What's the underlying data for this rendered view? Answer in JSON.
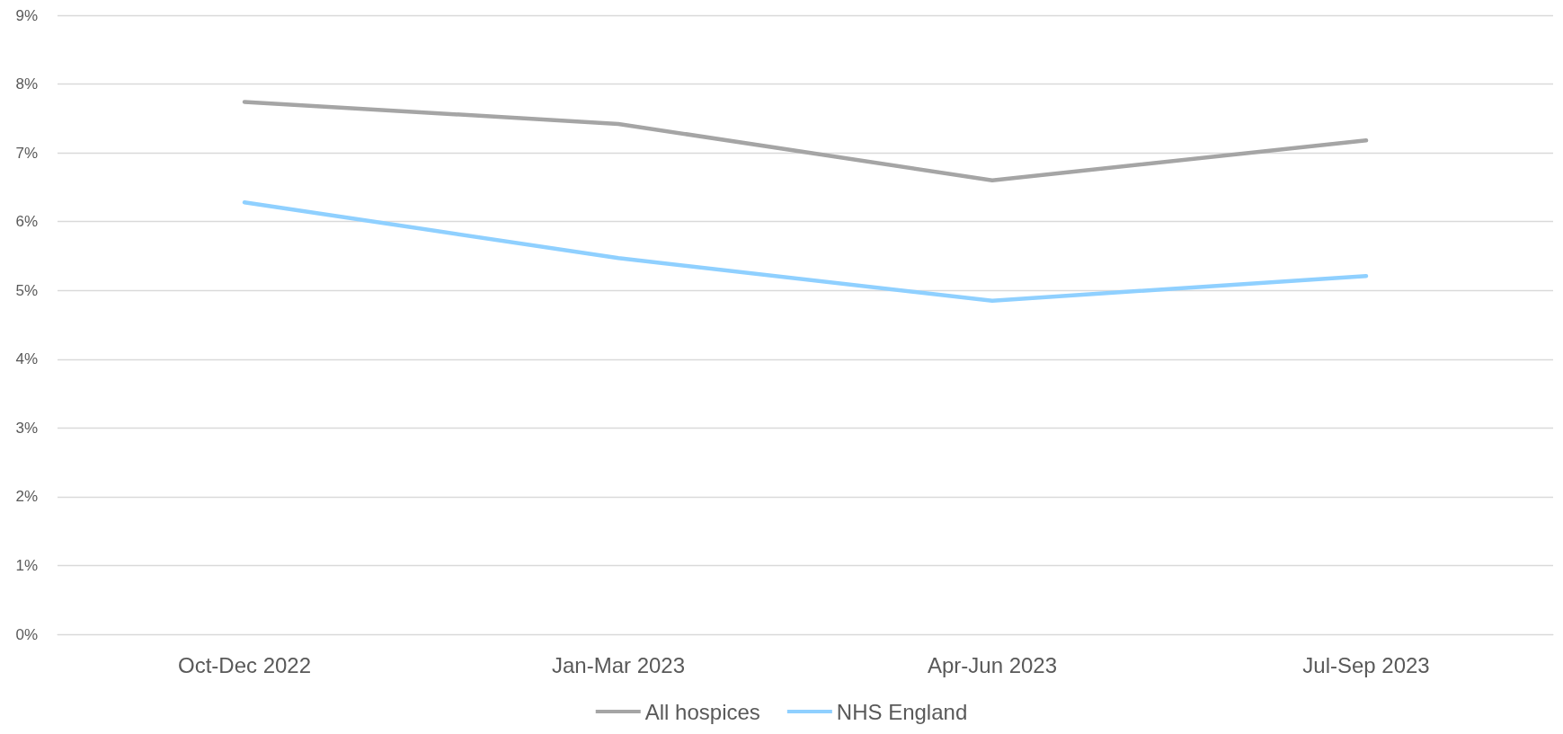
{
  "chart_data": {
    "type": "line",
    "categories": [
      "Oct-Dec 2022",
      "Jan-Mar 2023",
      "Apr-Jun 2023",
      "Jul-Sep 2023"
    ],
    "series": [
      {
        "name": "All hospices",
        "color": "#a5a5a5",
        "values": [
          7.74,
          7.42,
          6.6,
          7.18
        ]
      },
      {
        "name": "NHS England",
        "color": "#8fd0ff",
        "values": [
          6.28,
          5.47,
          4.85,
          5.21
        ]
      }
    ],
    "ylim": [
      0,
      9
    ],
    "yticks": [
      {
        "value": 0,
        "label": "0%"
      },
      {
        "value": 1,
        "label": "1%"
      },
      {
        "value": 2,
        "label": "2%"
      },
      {
        "value": 3,
        "label": "3%"
      },
      {
        "value": 4,
        "label": "4%"
      },
      {
        "value": 5,
        "label": "5%"
      },
      {
        "value": 6,
        "label": "6%"
      },
      {
        "value": 7,
        "label": "7%"
      },
      {
        "value": 8,
        "label": "8%"
      },
      {
        "value": 9,
        "label": "9%"
      }
    ],
    "grid": "y",
    "legend": "bottom",
    "marker": "none",
    "line_style": "solid"
  }
}
